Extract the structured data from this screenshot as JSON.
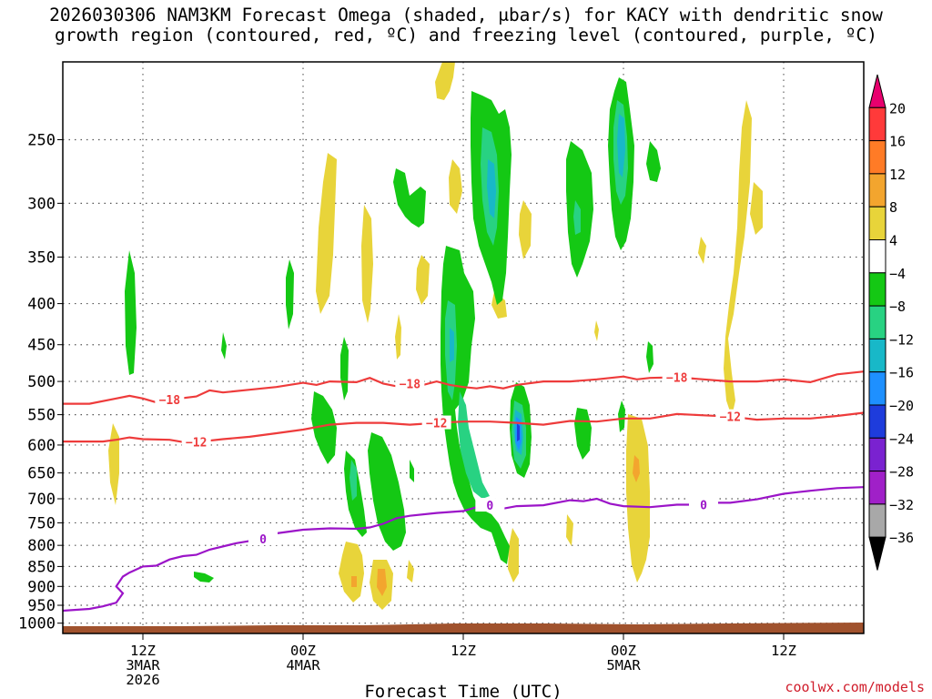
{
  "title_line1": "2026030306 NAM3KM Forecast Omega (shaded, μbar/s) for KACY with dendritic snow",
  "title_line2": "growth region (contoured, red, ºC) and freezing level (contoured, purple, ºC)",
  "credit": "coolwx.com/models",
  "chart_data": {
    "type": "time-height cross section",
    "xlabel": "Forecast Time (UTC)",
    "x_ticks": [
      {
        "hour": 6,
        "labels": [
          "12Z",
          "3MAR",
          "2026"
        ]
      },
      {
        "hour": 18,
        "labels": [
          "00Z",
          "4MAR"
        ]
      },
      {
        "hour": 30,
        "labels": [
          "12Z"
        ]
      },
      {
        "hour": 42,
        "labels": [
          "00Z",
          "5MAR"
        ]
      },
      {
        "hour": 54,
        "labels": [
          "12Z"
        ]
      }
    ],
    "xlim_hours": [
      0,
      60
    ],
    "ylabel": "",
    "y_ticks": [
      250,
      300,
      350,
      400,
      450,
      500,
      550,
      600,
      650,
      700,
      750,
      800,
      850,
      900,
      950,
      1000
    ],
    "ylim_hpa": [
      1030,
      200
    ],
    "colorbar": {
      "bins": [
        {
          "from": 20,
          "to": null,
          "color": "#e8006e"
        },
        {
          "from": 16,
          "to": 20,
          "color": "#ff3a3a"
        },
        {
          "from": 12,
          "to": 16,
          "color": "#ff7b26"
        },
        {
          "from": 8,
          "to": 12,
          "color": "#f3a52e"
        },
        {
          "from": 4,
          "to": 8,
          "color": "#e8d43a"
        },
        {
          "from": -4,
          "to": 4,
          "color": "#ffffff"
        },
        {
          "from": -8,
          "to": -4,
          "color": "#14c814"
        },
        {
          "from": -12,
          "to": -8,
          "color": "#28d282"
        },
        {
          "from": -16,
          "to": -12,
          "color": "#18b8c8"
        },
        {
          "from": -20,
          "to": -16,
          "color": "#1e90ff"
        },
        {
          "from": -24,
          "to": -20,
          "color": "#1e3cdc"
        },
        {
          "from": -28,
          "to": -24,
          "color": "#7a22d0"
        },
        {
          "from": -32,
          "to": -28,
          "color": "#a020c8"
        },
        {
          "from": -36,
          "to": -32,
          "color": "#a8a8a8"
        },
        {
          "from": null,
          "to": -36,
          "color": "#000000"
        }
      ],
      "labels": [
        "20",
        "16",
        "12",
        "8",
        "4",
        "−4",
        "−8",
        "−12",
        "−16",
        "−20",
        "−24",
        "−28",
        "−32",
        "−36"
      ]
    },
    "contours": [
      {
        "name": "-18",
        "color": "#ee3b3b",
        "points": [
          [
            0,
            533
          ],
          [
            2,
            533
          ],
          [
            4,
            525
          ],
          [
            5,
            521
          ],
          [
            6,
            525
          ],
          [
            7,
            531
          ],
          [
            8,
            527
          ],
          [
            10,
            522
          ],
          [
            11,
            513
          ],
          [
            12,
            516
          ],
          [
            14,
            512
          ],
          [
            16,
            508
          ],
          [
            18,
            502
          ],
          [
            19,
            505
          ],
          [
            20,
            500
          ],
          [
            22,
            501
          ],
          [
            23,
            495
          ],
          [
            24,
            503
          ],
          [
            25,
            507
          ],
          [
            26,
            503
          ],
          [
            27,
            505
          ],
          [
            28,
            500
          ],
          [
            29,
            505
          ],
          [
            30,
            508
          ],
          [
            31,
            510
          ],
          [
            32,
            507
          ],
          [
            33,
            510
          ],
          [
            34,
            505
          ],
          [
            36,
            500
          ],
          [
            38,
            500
          ],
          [
            40,
            497
          ],
          [
            42,
            493
          ],
          [
            43,
            497
          ],
          [
            44,
            495
          ],
          [
            46,
            494
          ],
          [
            48,
            497
          ],
          [
            50,
            500
          ],
          [
            52,
            500
          ],
          [
            54,
            497
          ],
          [
            56,
            501
          ],
          [
            58,
            490
          ],
          [
            60,
            486
          ]
        ],
        "labels": [
          [
            8,
            "−18"
          ],
          [
            26,
            "−18"
          ],
          [
            46,
            "−18"
          ]
        ]
      },
      {
        "name": "-12",
        "color": "#ee3b3b",
        "points": [
          [
            0,
            594
          ],
          [
            3,
            594
          ],
          [
            4,
            591
          ],
          [
            5,
            587
          ],
          [
            6,
            590
          ],
          [
            8,
            591
          ],
          [
            9,
            595
          ],
          [
            10,
            595
          ],
          [
            12,
            590
          ],
          [
            14,
            586
          ],
          [
            16,
            580
          ],
          [
            18,
            574
          ],
          [
            20,
            566
          ],
          [
            22,
            563
          ],
          [
            24,
            563
          ],
          [
            26,
            566
          ],
          [
            28,
            563
          ],
          [
            30,
            561
          ],
          [
            32,
            561
          ],
          [
            34,
            563
          ],
          [
            36,
            566
          ],
          [
            38,
            560
          ],
          [
            40,
            561
          ],
          [
            42,
            556
          ],
          [
            44,
            556
          ],
          [
            46,
            549
          ],
          [
            48,
            551
          ],
          [
            50,
            553
          ],
          [
            52,
            558
          ],
          [
            54,
            556
          ],
          [
            56,
            556
          ],
          [
            58,
            552
          ],
          [
            60,
            547
          ]
        ],
        "labels": [
          [
            10,
            "−12"
          ],
          [
            28,
            "−12"
          ],
          [
            50,
            "−12"
          ]
        ]
      },
      {
        "name": "0",
        "color": "#9b14c8",
        "points": [
          [
            0,
            965
          ],
          [
            2,
            960
          ],
          [
            3,
            953
          ],
          [
            4,
            943
          ],
          [
            4.5,
            918
          ],
          [
            4,
            900
          ],
          [
            4.5,
            875
          ],
          [
            5,
            865
          ],
          [
            6,
            850
          ],
          [
            7,
            848
          ],
          [
            8,
            833
          ],
          [
            9,
            825
          ],
          [
            10,
            822
          ],
          [
            11,
            810
          ],
          [
            13,
            795
          ],
          [
            15,
            785
          ],
          [
            16,
            773
          ],
          [
            18,
            765
          ],
          [
            20,
            762
          ],
          [
            22,
            763
          ],
          [
            23,
            760
          ],
          [
            24,
            752
          ],
          [
            25,
            740
          ],
          [
            26,
            735
          ],
          [
            28,
            729
          ],
          [
            30,
            725
          ],
          [
            31,
            717
          ],
          [
            32,
            713
          ],
          [
            33,
            720
          ],
          [
            34,
            715
          ],
          [
            36,
            713
          ],
          [
            38,
            703
          ],
          [
            39,
            705
          ],
          [
            40,
            700
          ],
          [
            41,
            710
          ],
          [
            42,
            715
          ],
          [
            44,
            717
          ],
          [
            46,
            712
          ],
          [
            48,
            712
          ],
          [
            49,
            708
          ],
          [
            50,
            708
          ],
          [
            52,
            701
          ],
          [
            54,
            690
          ],
          [
            55,
            687
          ],
          [
            56,
            684
          ],
          [
            58,
            679
          ],
          [
            60,
            677
          ]
        ],
        "labels": [
          [
            15,
            "0"
          ],
          [
            32,
            "0"
          ],
          [
            48,
            "0"
          ]
        ]
      }
    ]
  }
}
